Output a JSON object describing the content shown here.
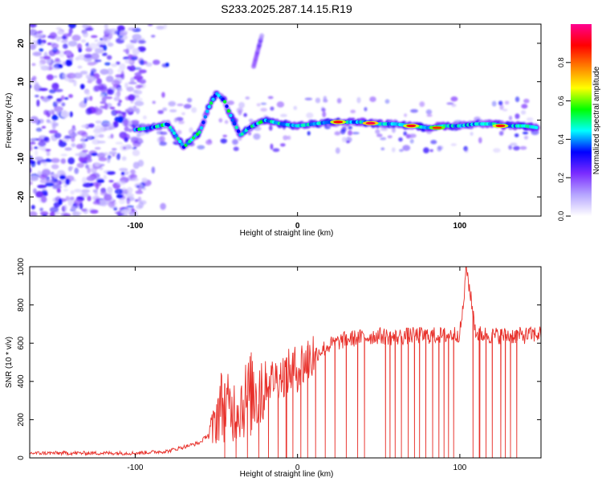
{
  "figure": {
    "title": "S233.2025.287.14.15.R19"
  },
  "colors": {
    "line": "#e8302a",
    "frame": "#000000"
  },
  "chart_data": [
    {
      "type": "heatmap",
      "xlabel": "Height of straight line (km)",
      "ylabel": "Frequency (Hz)",
      "xlim": [
        -165,
        150
      ],
      "ylim": [
        -25,
        25
      ],
      "xticks": [
        -100,
        0,
        100
      ],
      "yticks": [
        -20,
        -10,
        0,
        10,
        20
      ],
      "colorbar": {
        "label": "Normalized spectral amplitude",
        "range": [
          0,
          1
        ],
        "ticks": [
          "0.0",
          "0.2",
          "0.4",
          "0.6",
          "0.8"
        ],
        "colormap": [
          "#ffffff",
          "#b6a6ff",
          "#7b2cff",
          "#0000ff",
          "#00ffff",
          "#00ff00",
          "#ffff00",
          "#ff8000",
          "#ff0000",
          "#ff0090"
        ]
      },
      "description_series": {
        "noise_region": {
          "x": [
            -165,
            -95
          ],
          "y": [
            -25,
            25
          ],
          "amplitude": [
            0.05,
            0.35
          ]
        },
        "main_track": {
          "x": [
            -100,
            -90,
            -80,
            -70,
            -60,
            -55,
            -50,
            -45,
            -40,
            -35,
            -30,
            -25,
            -20,
            -10,
            0,
            10,
            20,
            30,
            40,
            50,
            60,
            70,
            80,
            90,
            100,
            110,
            120,
            130,
            140,
            148
          ],
          "y": [
            -2.5,
            -2,
            -1,
            -7,
            -3,
            3,
            7,
            5,
            0,
            -4,
            -2,
            -1,
            0,
            -1,
            -1.5,
            -1,
            -0.5,
            -0.5,
            -0.5,
            -1,
            -1,
            -1.5,
            -2,
            -1.5,
            -1.5,
            -1,
            -1,
            -1.5,
            -1.5,
            -2
          ]
        },
        "peaks": {
          "x": [
            25,
            45,
            70,
            86,
            125
          ],
          "y": [
            -0.5,
            -0.8,
            -1.5,
            -2,
            -1.5
          ],
          "amplitude": [
            0.9,
            0.95,
            0.9,
            0.85,
            0.9
          ]
        },
        "streak": {
          "x": [
            -27,
            -22
          ],
          "y": [
            14,
            22
          ]
        }
      }
    },
    {
      "type": "line",
      "xlabel": "Height of straight line (km)",
      "ylabel": "SNR (10 * v/v)",
      "xlim": [
        -165,
        150
      ],
      "ylim": [
        0,
        1000
      ],
      "xticks": [
        -100,
        0,
        100
      ],
      "yticks": [
        0,
        200,
        400,
        600,
        800,
        1000
      ],
      "series": [
        {
          "name": "SNR",
          "x": [
            -165,
            -140,
            -120,
            -100,
            -80,
            -60,
            -52,
            -48,
            -40,
            -30,
            -20,
            -10,
            0,
            10,
            20,
            30,
            40,
            50,
            60,
            70,
            80,
            90,
            100,
            102,
            104,
            110,
            120,
            130,
            140,
            150
          ],
          "y": [
            25,
            25,
            25,
            25,
            35,
            80,
            150,
            280,
            250,
            320,
            400,
            430,
            470,
            540,
            590,
            620,
            630,
            640,
            630,
            640,
            640,
            640,
            650,
            780,
            1000,
            650,
            640,
            640,
            640,
            650
          ]
        }
      ],
      "dropouts_to_zero_km": [
        -45,
        -38,
        -31,
        -24,
        -18,
        -12,
        -7,
        -3,
        2,
        6,
        11,
        17,
        23,
        30,
        37,
        41,
        54,
        57,
        60,
        64,
        68,
        72,
        75,
        79,
        83,
        87,
        90,
        93,
        96,
        108,
        112,
        116,
        120,
        125,
        128,
        131,
        135
      ]
    }
  ]
}
